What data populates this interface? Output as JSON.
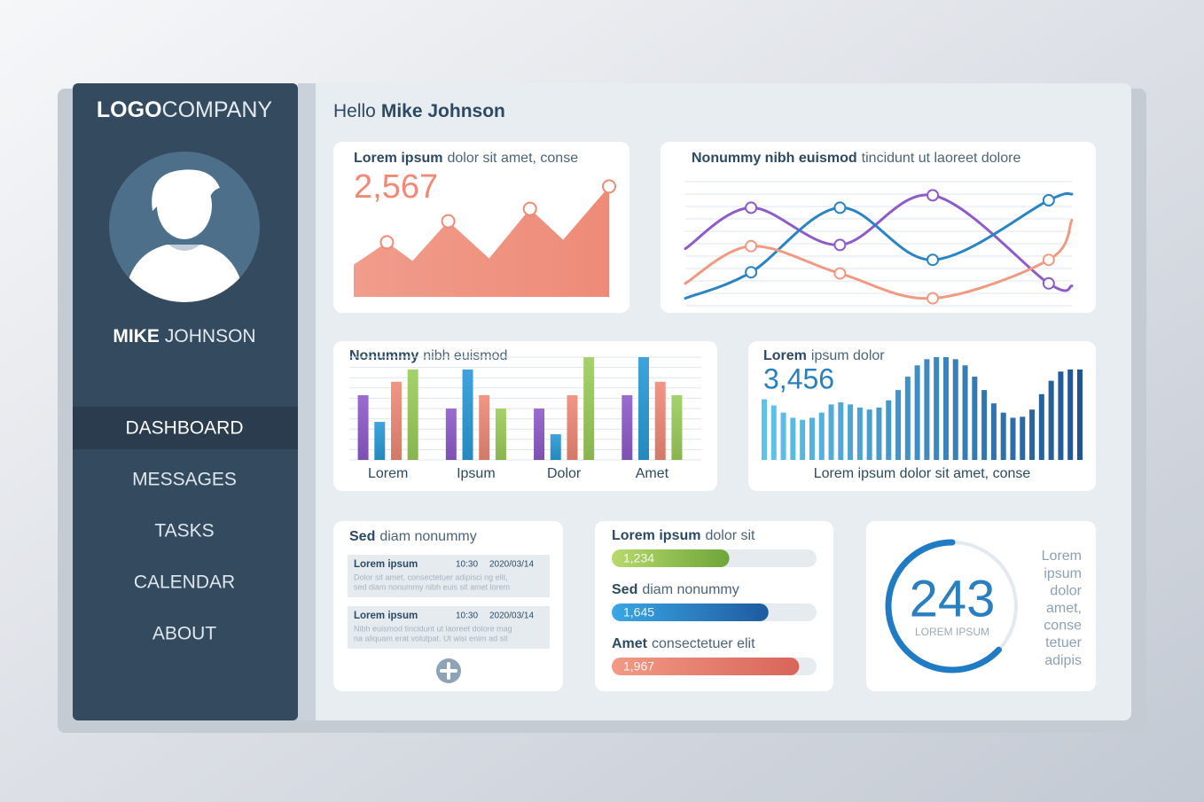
{
  "sidebar": {
    "logo": {
      "bold": "LOGO",
      "rest": "COMPANY"
    },
    "user": {
      "bold": "MIKE",
      "rest": "JOHNSON"
    },
    "menu": [
      {
        "label": "DASHBOARD",
        "active": true
      },
      {
        "label": "MESSAGES",
        "active": false
      },
      {
        "label": "TASKS",
        "active": false
      },
      {
        "label": "CALENDAR",
        "active": false
      },
      {
        "label": "ABOUT",
        "active": false
      }
    ]
  },
  "header": {
    "greeting": "Hello",
    "name": "Mike Johnson"
  },
  "notes": {
    "title": {
      "bold": "Sed",
      "rest": "diam nonummy"
    },
    "items": [
      {
        "title": "Lorem ipsum",
        "time": "10:30",
        "date": "2020/03/14",
        "lines": [
          "Dolor sit amet, consectetuer adipisci ng elit,",
          "sed diam nonummy nibh euis sit amet lorem"
        ]
      },
      {
        "title": "Lorem ipsum",
        "time": "10:30",
        "date": "2020/03/14",
        "lines": [
          "Nibh euismod tincidunt ut laoreet dolore mag",
          "na aliquam erat volutpat. Ut wisi enim ad sit"
        ]
      }
    ]
  },
  "chart_data": [
    {
      "type": "area",
      "title": {
        "bold": "Lorem ipsum",
        "rest": "dolor sit amet, conse"
      },
      "headline": "2,567",
      "x": [
        0,
        13,
        23,
        37,
        53,
        69,
        82,
        100
      ],
      "values": [
        26,
        44,
        29,
        61,
        31,
        71,
        46,
        89
      ],
      "xlim": [
        0,
        100
      ],
      "ylim": [
        0,
        100
      ],
      "color": "#ee8b78"
    },
    {
      "type": "line",
      "title": {
        "bold": "Nonummy nibh euismod",
        "rest": "tincidunt ut laoreet dolore"
      },
      "x": [
        0,
        17,
        40,
        64,
        94,
        100
      ],
      "xlim": [
        0,
        100
      ],
      "ylim": [
        0,
        100
      ],
      "yticks": [
        0,
        10,
        20,
        30,
        40,
        50,
        60,
        70,
        80,
        90,
        100
      ],
      "grid": true,
      "series": [
        {
          "color": "#8e5cc8",
          "values": [
            46,
            79,
            49,
            89,
            18,
            16
          ]
        },
        {
          "color": "#2a84c4",
          "values": [
            6,
            27,
            79,
            37,
            85,
            90
          ]
        },
        {
          "color": "#f09a84",
          "values": [
            18,
            48,
            26,
            6,
            37,
            69
          ]
        }
      ]
    },
    {
      "type": "bar",
      "title": {
        "bold": "Nonummy",
        "rest": "nibh euismod"
      },
      "categories": [
        "Lorem",
        "Ipsum",
        "Dolor",
        "Amet"
      ],
      "ylim": [
        0,
        100
      ],
      "yticks": [
        0,
        10,
        20,
        30,
        40,
        50,
        60,
        70,
        80,
        90,
        100
      ],
      "grid": true,
      "series": [
        {
          "color": "#8e5cc8",
          "values": [
            63,
            50,
            50,
            63
          ]
        },
        {
          "color": "#2a9ad8",
          "values": [
            37,
            88,
            25,
            100
          ]
        },
        {
          "color": "#f08a76",
          "values": [
            76,
            63,
            63,
            76
          ]
        },
        {
          "color": "#9ccd5a",
          "values": [
            88,
            50,
            100,
            63
          ]
        }
      ]
    },
    {
      "type": "bar",
      "title": {
        "bold": "Lorem",
        "rest": "ipsum dolor"
      },
      "headline": "3,456",
      "caption": "Lorem ipsum dolor sit amet, conse",
      "ylim": [
        0,
        100
      ],
      "colors": [
        "#5ec3ec",
        "#1f5595"
      ],
      "values": [
        59,
        53,
        46,
        41,
        39,
        41,
        46,
        54,
        56,
        54,
        51,
        49,
        51,
        58,
        68,
        81,
        92,
        98,
        100,
        100,
        98,
        92,
        81,
        68,
        55,
        46,
        41,
        42,
        49,
        64,
        77,
        86,
        88,
        88
      ]
    },
    {
      "type": "progress",
      "items": [
        {
          "bold": "Lorem ipsum",
          "rest": "dolor sit"
        },
        {
          "bold": "Sed",
          "rest": "diam nonummy"
        },
        {
          "bold": "Amet",
          "rest": "consectetuer elit"
        }
      ],
      "values": [
        1234,
        1645,
        1967
      ],
      "value_labels": [
        "1,234",
        "1,645",
        "1,967"
      ],
      "xlim": [
        0,
        2150
      ],
      "colors": [
        [
          "#b8da6c",
          "#6ea53a"
        ],
        [
          "#3aa7e4",
          "#1f5aa0"
        ],
        [
          "#f29a86",
          "#d9645a"
        ]
      ]
    },
    {
      "type": "gauge",
      "value": 243,
      "caption": "LOREM IPSUM",
      "fill": 63,
      "lim": [
        0,
        100
      ],
      "color": "#1f7cc4",
      "side_text": [
        "Lorem",
        "ipsum",
        "dolor",
        "amet,",
        "conse",
        "tetuer",
        "adipis"
      ]
    }
  ]
}
